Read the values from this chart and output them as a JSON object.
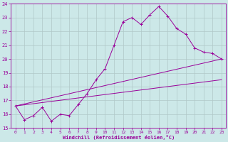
{
  "xlabel": "Windchill (Refroidissement éolien,°C)",
  "background_color": "#cce8e8",
  "line_color": "#990099",
  "grid_color": "#b0c8c8",
  "xlim": [
    -0.5,
    23.5
  ],
  "ylim": [
    15,
    24
  ],
  "xticks": [
    0,
    1,
    2,
    3,
    4,
    5,
    6,
    7,
    8,
    9,
    10,
    11,
    12,
    13,
    14,
    15,
    16,
    17,
    18,
    19,
    20,
    21,
    22,
    23
  ],
  "yticks": [
    15,
    16,
    17,
    18,
    19,
    20,
    21,
    22,
    23,
    24
  ],
  "line1_x": [
    0,
    1,
    2,
    3,
    4,
    5,
    6,
    7,
    8,
    9,
    10,
    11,
    12,
    13,
    14,
    15,
    16,
    17,
    18,
    19,
    20,
    21,
    22,
    23
  ],
  "line1_y": [
    16.6,
    15.6,
    15.9,
    16.5,
    15.5,
    16.0,
    15.9,
    16.7,
    17.5,
    18.5,
    19.3,
    21.0,
    22.7,
    23.0,
    22.5,
    23.2,
    23.8,
    23.1,
    22.2,
    21.8,
    20.8,
    20.5,
    20.4,
    20.0
  ],
  "line2_x": [
    0,
    23
  ],
  "line2_y": [
    16.6,
    20.0
  ],
  "line3_x": [
    0,
    23
  ],
  "line3_y": [
    16.6,
    18.5
  ],
  "xlabel_fontsize": 5,
  "tick_fontsize": 4.5,
  "ytick_fontsize": 5
}
